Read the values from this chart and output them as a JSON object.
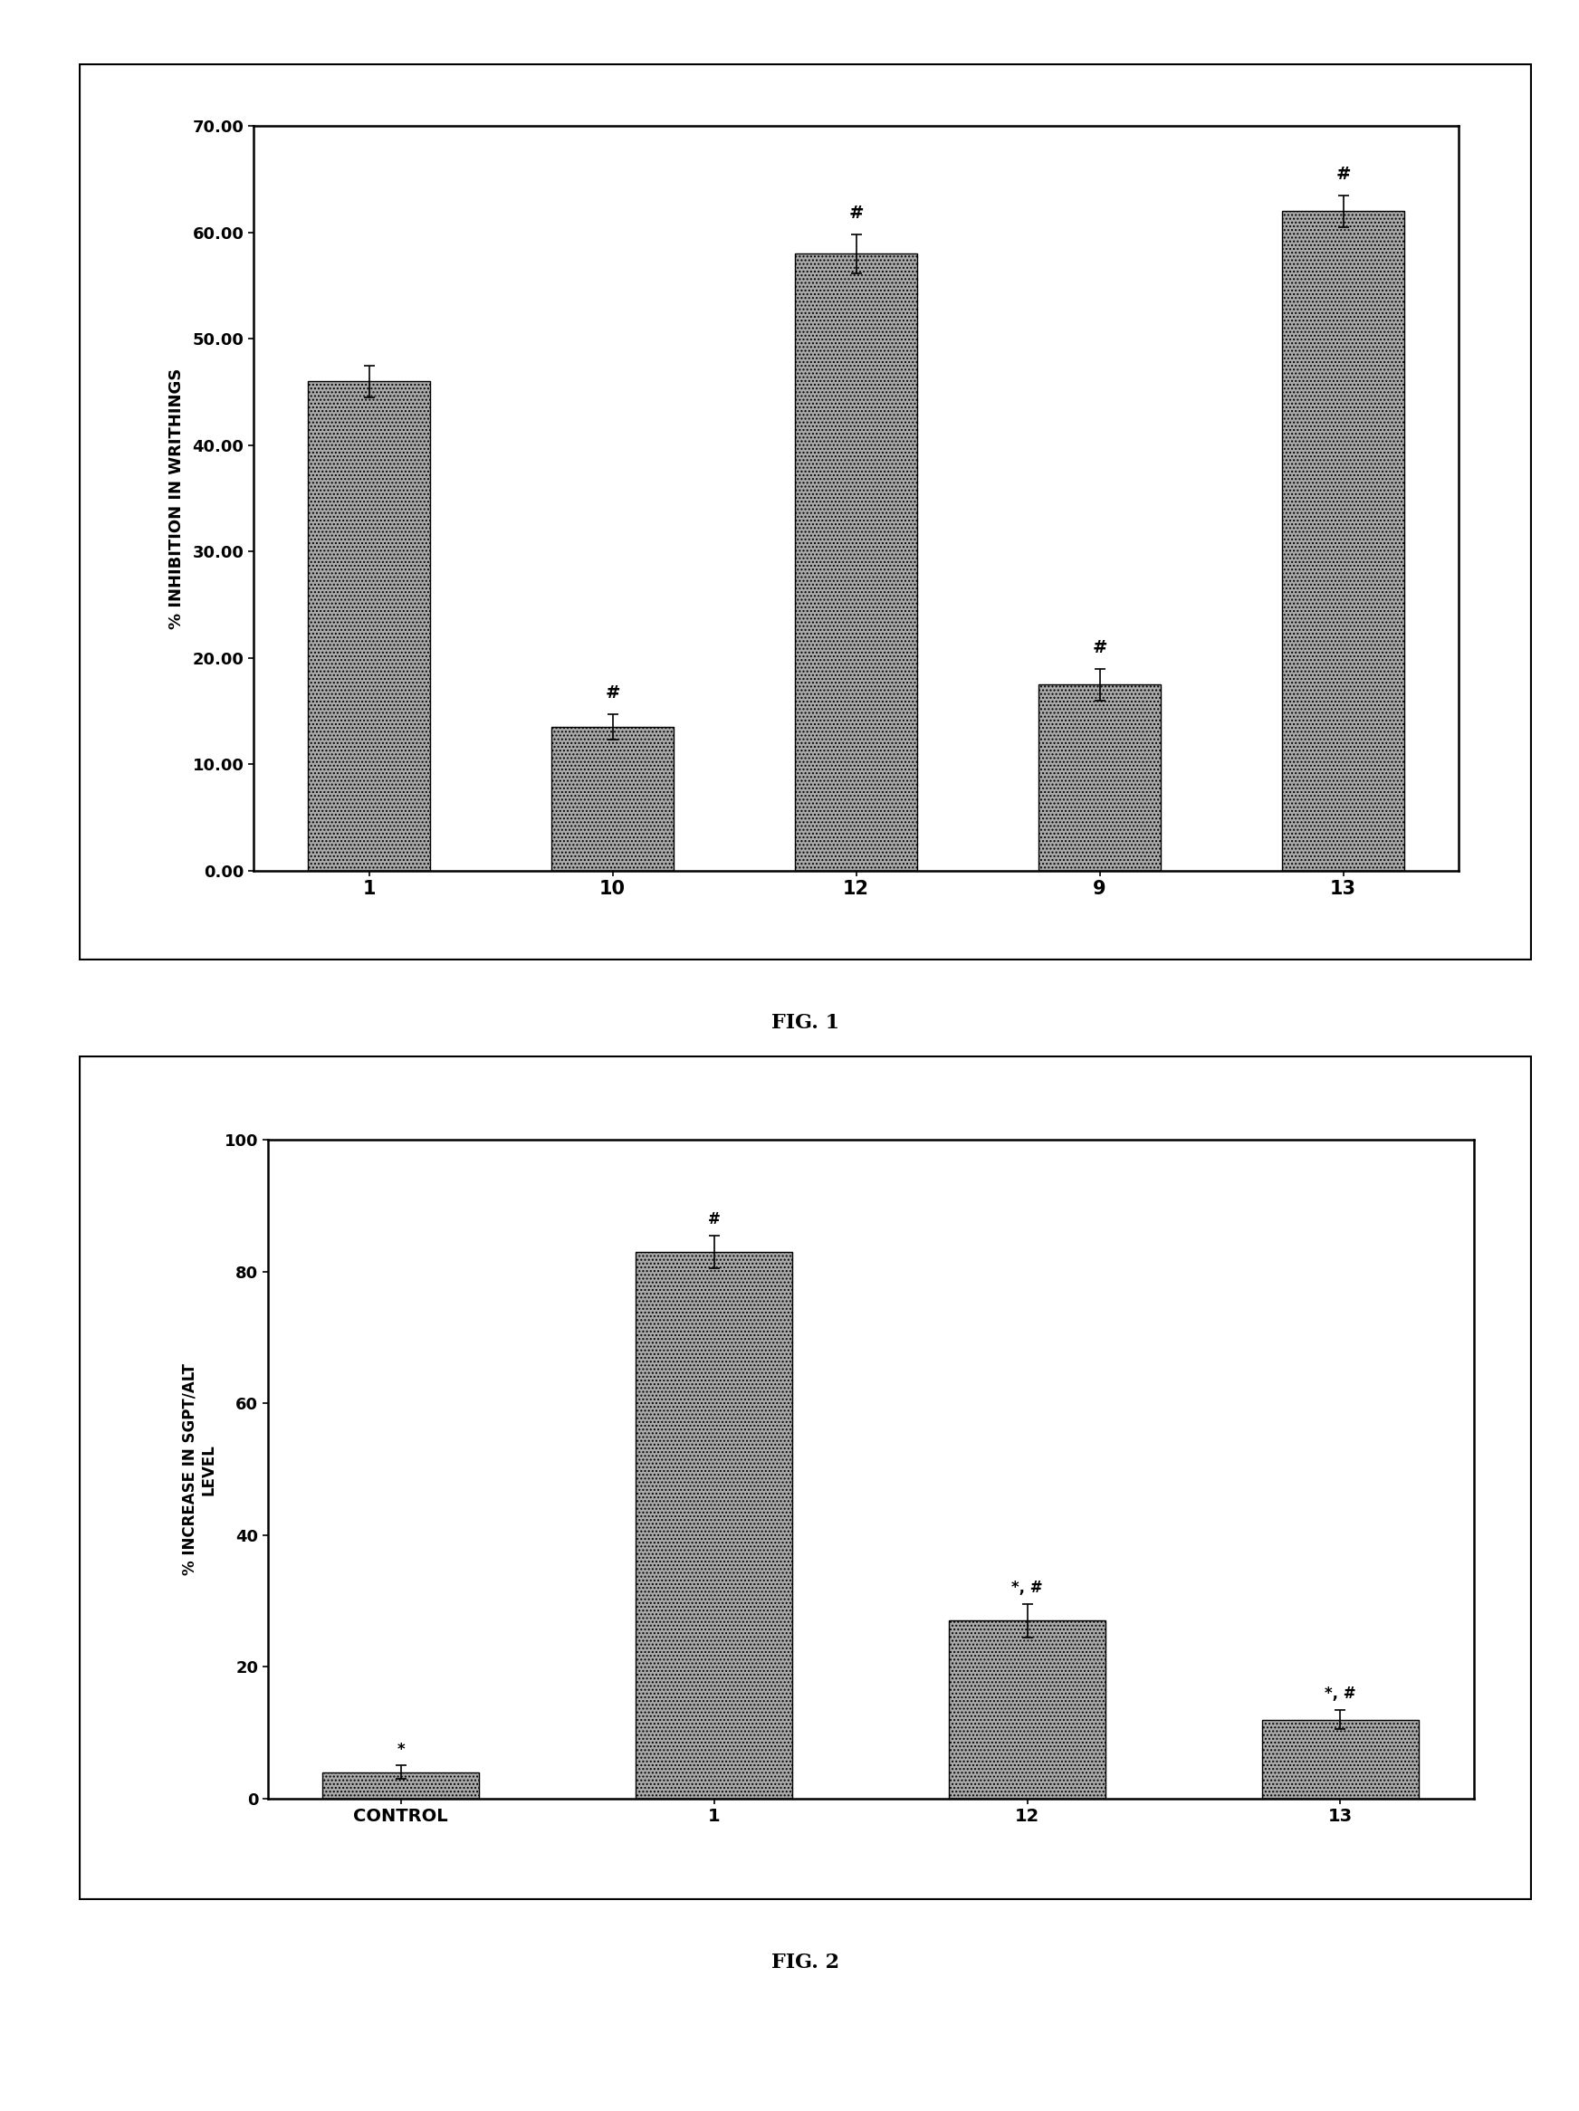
{
  "fig1": {
    "categories": [
      "1",
      "10",
      "12",
      "9",
      "13"
    ],
    "values": [
      46.0,
      13.5,
      58.0,
      17.5,
      62.0
    ],
    "errors": [
      1.5,
      1.2,
      1.8,
      1.5,
      1.5
    ],
    "ylabel": "% INHIBITION IN WRITHINGS",
    "yticks": [
      0.0,
      10.0,
      20.0,
      30.0,
      40.0,
      50.0,
      60.0,
      70.0
    ],
    "ylim": [
      0,
      70
    ],
    "annotations": [
      "",
      "#",
      "#",
      "#",
      "#"
    ],
    "caption": "FIG. 1"
  },
  "fig2": {
    "categories": [
      "CONTROL",
      "1",
      "12",
      "13"
    ],
    "values": [
      4.0,
      83.0,
      27.0,
      12.0
    ],
    "errors": [
      1.0,
      2.5,
      2.5,
      1.5
    ],
    "ylabel_line1": "% INCREASE IN SGPT/ALT",
    "ylabel_line2": "LEVEL",
    "yticks": [
      0,
      20,
      40,
      60,
      80,
      100
    ],
    "ylim": [
      0,
      100
    ],
    "annotations": [
      "*",
      "#",
      "*, #",
      "*, #"
    ],
    "caption": "FIG. 2"
  },
  "bar_color": "#aaaaaa",
  "bar_hatch": "....",
  "background_color": "#ffffff",
  "bar_edgecolor": "#000000"
}
